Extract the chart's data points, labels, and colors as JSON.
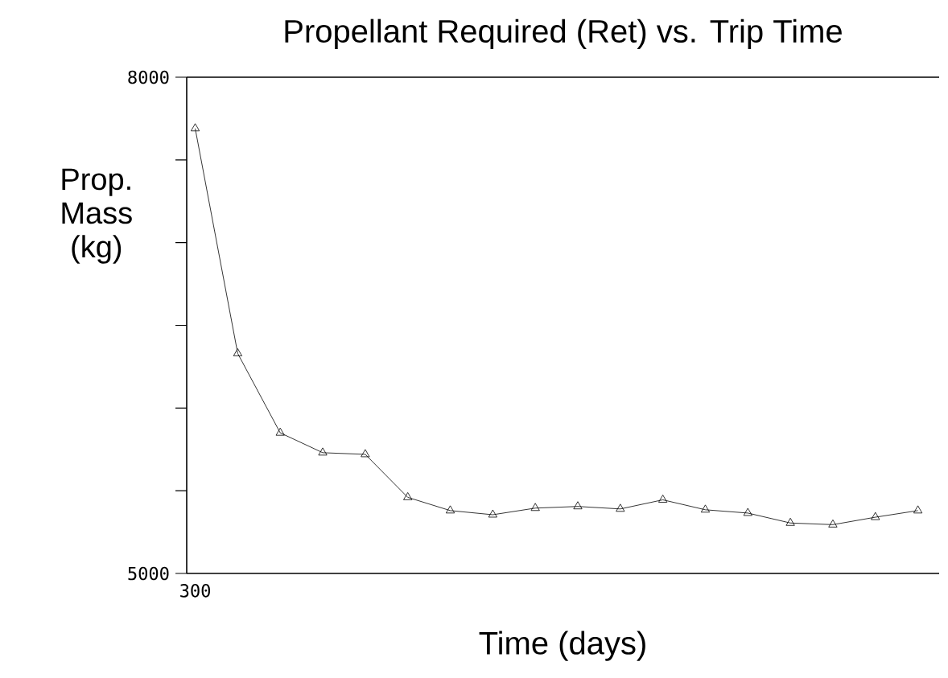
{
  "chart_data": {
    "type": "line",
    "title": "Propellant Required (Ret) vs. Trip Time",
    "xlabel": "Time (days)",
    "ylabel": "Prop. Mass (kg)",
    "categories": [
      "300",
      null,
      null,
      null,
      null,
      null,
      null,
      null,
      null,
      null,
      null,
      null,
      null,
      null,
      null,
      null,
      null,
      null
    ],
    "series": [
      {
        "color": "#000000",
        "values": [
          7690,
          6330,
          5850,
          5730,
          5720,
          5460,
          5380,
          5355,
          5395,
          5405,
          5390,
          5445,
          5385,
          5365,
          5305,
          5295,
          5340,
          5380
        ]
      }
    ],
    "ylim": [
      5000,
      8000
    ],
    "yticks": [
      5000,
      {
        "value": 5500,
        "label": null
      },
      {
        "value": 6000,
        "label": null
      },
      {
        "value": 6500,
        "label": null
      },
      {
        "value": 7000,
        "label": null
      },
      {
        "value": 7500,
        "label": null
      },
      8000
    ],
    "marker": "triangle",
    "line_style": "solid"
  }
}
